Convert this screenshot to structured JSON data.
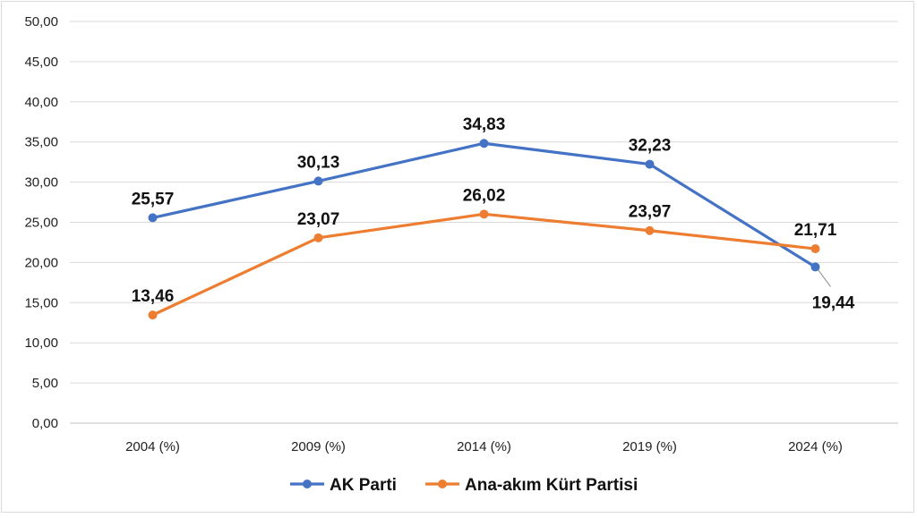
{
  "chart_data": {
    "type": "line",
    "categories": [
      "2004 (%)",
      "2009 (%)",
      "2014 (%)",
      "2019 (%)",
      "2024 (%)"
    ],
    "ylim": [
      0,
      50
    ],
    "y_ticks": [
      "0,00",
      "5,00",
      "10,00",
      "15,00",
      "20,00",
      "25,00",
      "30,00",
      "35,00",
      "40,00",
      "45,00",
      "50,00"
    ],
    "grid": true,
    "legend_position": "bottom",
    "series": [
      {
        "name": "AK Parti",
        "color": "#4472C4",
        "values": [
          25.57,
          30.13,
          34.83,
          32.23,
          19.44
        ],
        "labels": [
          "25,57",
          "30,13",
          "34,83",
          "32,23",
          "19,44"
        ]
      },
      {
        "name": "Ana-akım Kürt Partisi",
        "color": "#ED7D31",
        "values": [
          13.46,
          23.07,
          26.02,
          23.97,
          21.71
        ],
        "labels": [
          "13,46",
          "23,07",
          "26,02",
          "23,97",
          "21,71"
        ]
      }
    ]
  }
}
